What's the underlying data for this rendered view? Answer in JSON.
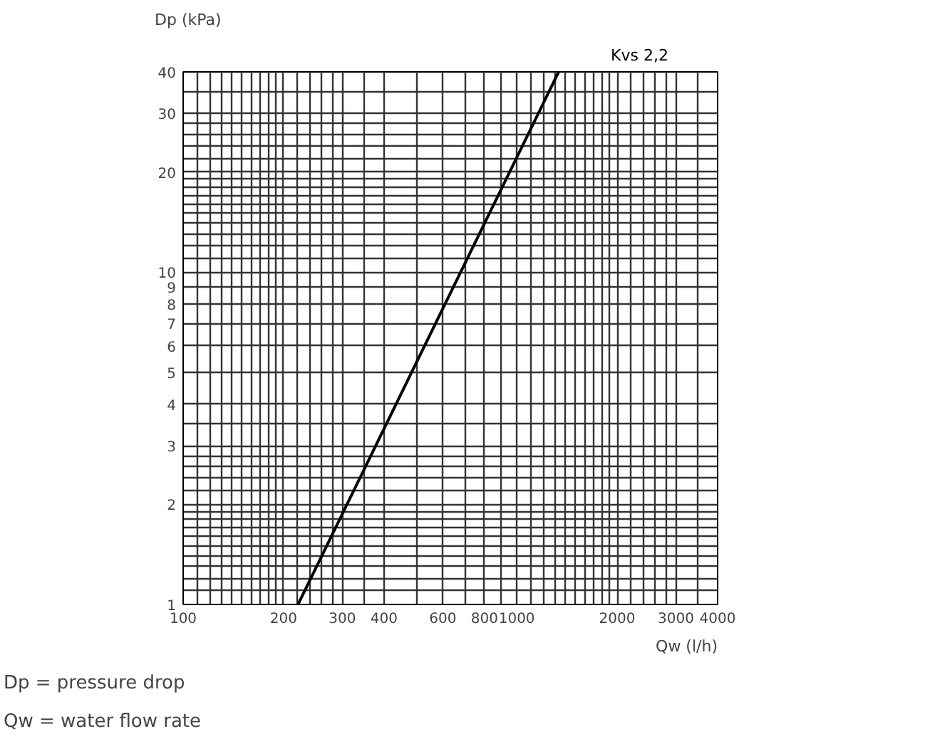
{
  "chart_data": {
    "type": "line",
    "xlabel": "Qw (l/h)",
    "ylabel": "Dp (kPa)",
    "log": "xy",
    "x": [
      221,
      1335
    ],
    "series": [
      {
        "name": "Kvs 2,2",
        "color": "#000000",
        "values": [
          1,
          40
        ]
      }
    ],
    "xlim": [
      100,
      4000
    ],
    "ylim": [
      1,
      40
    ],
    "xticks": [
      100,
      {
        "value": 110,
        "label": null
      },
      {
        "value": 120,
        "label": null
      },
      {
        "value": 130,
        "label": null
      },
      {
        "value": 140,
        "label": null
      },
      {
        "value": 150,
        "label": null
      },
      {
        "value": 160,
        "label": null
      },
      {
        "value": 170,
        "label": null
      },
      {
        "value": 180,
        "label": null
      },
      {
        "value": 190,
        "label": null
      },
      200,
      {
        "value": 220,
        "label": null
      },
      {
        "value": 240,
        "label": null
      },
      {
        "value": 260,
        "label": null
      },
      {
        "value": 280,
        "label": null
      },
      300,
      {
        "value": 350,
        "label": null
      },
      400,
      {
        "value": 500,
        "label": null
      },
      600,
      {
        "value": 700,
        "label": null
      },
      800,
      {
        "value": 900,
        "label": null
      },
      1000,
      {
        "value": 1100,
        "label": null
      },
      {
        "value": 1200,
        "label": null
      },
      {
        "value": 1300,
        "label": null
      },
      {
        "value": 1400,
        "label": null
      },
      {
        "value": 1500,
        "label": null
      },
      {
        "value": 1600,
        "label": null
      },
      {
        "value": 1700,
        "label": null
      },
      {
        "value": 1800,
        "label": null
      },
      {
        "value": 1900,
        "label": null
      },
      2000,
      {
        "value": 2200,
        "label": null
      },
      {
        "value": 2400,
        "label": null
      },
      {
        "value": 2600,
        "label": null
      },
      {
        "value": 2800,
        "label": null
      },
      3000,
      {
        "value": 3500,
        "label": null
      },
      4000
    ],
    "yticks": [
      1,
      {
        "value": 1.1,
        "label": null
      },
      {
        "value": 1.2,
        "label": null
      },
      {
        "value": 1.3,
        "label": null
      },
      {
        "value": 1.4,
        "label": null
      },
      {
        "value": 1.5,
        "label": null
      },
      {
        "value": 1.6,
        "label": null
      },
      {
        "value": 1.7,
        "label": null
      },
      {
        "value": 1.8,
        "label": null
      },
      {
        "value": 1.9,
        "label": null
      },
      2,
      {
        "value": 2.2,
        "label": null
      },
      {
        "value": 2.4,
        "label": null
      },
      {
        "value": 2.6,
        "label": null
      },
      {
        "value": 2.8,
        "label": null
      },
      3,
      {
        "value": 3.5,
        "label": null
      },
      4,
      5,
      6,
      7,
      8,
      9,
      10,
      {
        "value": 11,
        "label": null
      },
      {
        "value": 12,
        "label": null
      },
      {
        "value": 13,
        "label": null
      },
      {
        "value": 14,
        "label": null
      },
      {
        "value": 15,
        "label": null
      },
      {
        "value": 16,
        "label": null
      },
      {
        "value": 17,
        "label": null
      },
      {
        "value": 18,
        "label": null
      },
      {
        "value": 19,
        "label": null
      },
      20,
      {
        "value": 22,
        "label": null
      },
      {
        "value": 24,
        "label": null
      },
      {
        "value": 26,
        "label": null
      },
      {
        "value": 28,
        "label": null
      },
      30,
      {
        "value": 35,
        "label": null
      },
      40
    ],
    "grid": true,
    "marker": "none",
    "line_style": "solid",
    "annotations": [
      "Dp = pressure drop",
      "Qw = water flow rate"
    ]
  }
}
